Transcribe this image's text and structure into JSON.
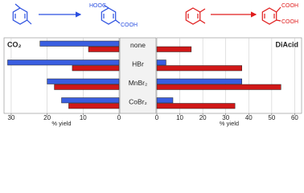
{
  "scheme": {
    "labels": [
      "HOOC",
      "COOH",
      "COOH",
      "COOH"
    ]
  },
  "chart_data": [
    {
      "type": "bar",
      "orientation": "horizontal",
      "title": "CO₂",
      "categories": [
        "none",
        "HBr",
        "MnBr₂",
        "CoBr₂"
      ],
      "xlabel": "% yield",
      "xlim": [
        32,
        0
      ],
      "xticks": [
        30,
        20,
        10,
        0
      ],
      "series": [
        {
          "color": "#3a5ee0",
          "values": [
            22,
            31,
            20,
            16
          ]
        },
        {
          "color": "#d01818",
          "values": [
            8.5,
            13,
            18,
            14
          ]
        }
      ]
    },
    {
      "type": "bar",
      "orientation": "horizontal",
      "title": "DiAcid",
      "xlabel": "% yield",
      "xlim": [
        0,
        63
      ],
      "xticks": [
        0,
        10,
        20,
        30,
        40,
        50,
        60
      ],
      "series": [
        {
          "color": "#3a5ee0",
          "values": [
            0,
            4,
            37,
            7
          ]
        },
        {
          "color": "#d01818",
          "values": [
            15,
            37,
            54,
            34
          ]
        }
      ]
    }
  ]
}
